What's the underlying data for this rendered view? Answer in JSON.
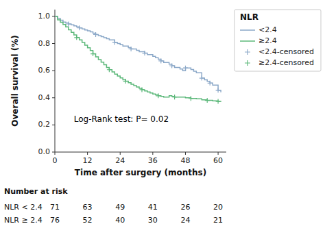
{
  "chart_data": {
    "type": "line",
    "xlabel": "Time after surgery (months)",
    "ylabel": "Overall survival (%)",
    "xlim": [
      0,
      63
    ],
    "ylim": [
      0.0,
      1.05
    ],
    "xticks": [
      0,
      12,
      24,
      36,
      48,
      60
    ],
    "yticks": [
      {
        "value": 0.0,
        "label": "0.0"
      },
      0.2,
      0.4,
      0.6,
      0.8,
      {
        "value": 1.0,
        "label": "1.0"
      }
    ],
    "grid": false,
    "legend": "right",
    "legend_title": "NLR",
    "annotation": {
      "text": "Log-Rank test: P= 0.02",
      "x": 7,
      "y": 0.22
    },
    "series": [
      {
        "name": "<2.4",
        "type": "step",
        "color": "#8ba8c8",
        "x": [
          0,
          1,
          2,
          3,
          4,
          5,
          6,
          7,
          8,
          9,
          10,
          11,
          12,
          13,
          14,
          15,
          16,
          17,
          18,
          19,
          20,
          22,
          23,
          24,
          25,
          27,
          28,
          30,
          31,
          33,
          34,
          36,
          37,
          38,
          39,
          40,
          42,
          43,
          44,
          46,
          47,
          48,
          50,
          51,
          52,
          54,
          55,
          56,
          57,
          58,
          60,
          61
        ],
        "values": [
          1.0,
          0.986,
          0.972,
          0.958,
          0.952,
          0.944,
          0.938,
          0.93,
          0.922,
          0.915,
          0.908,
          0.9,
          0.893,
          0.886,
          0.876,
          0.866,
          0.858,
          0.85,
          0.843,
          0.835,
          0.826,
          0.808,
          0.8,
          0.791,
          0.781,
          0.77,
          0.76,
          0.75,
          0.74,
          0.729,
          0.718,
          0.706,
          0.696,
          0.684,
          0.672,
          0.66,
          0.648,
          0.636,
          0.624,
          0.612,
          0.6,
          0.62,
          0.608,
          0.596,
          0.584,
          0.545,
          0.533,
          0.521,
          0.508,
          0.494,
          0.455,
          0.44
        ]
      },
      {
        "name": "≥2.4",
        "type": "step",
        "color": "#5cb87a",
        "x": [
          0,
          1,
          2,
          3,
          4,
          5,
          6,
          7,
          8,
          9,
          10,
          11,
          12,
          13,
          14,
          15,
          16,
          17,
          18,
          19,
          20,
          21,
          22,
          23,
          24,
          25,
          26,
          27,
          28,
          29,
          30,
          31,
          32,
          33,
          34,
          35,
          36,
          37,
          38,
          39,
          40,
          42,
          43,
          44,
          46,
          48,
          50,
          52,
          54,
          56,
          58,
          60,
          61
        ],
        "values": [
          1.0,
          0.974,
          0.956,
          0.94,
          0.922,
          0.901,
          0.882,
          0.863,
          0.844,
          0.826,
          0.808,
          0.788,
          0.768,
          0.748,
          0.724,
          0.702,
          0.682,
          0.662,
          0.643,
          0.624,
          0.607,
          0.59,
          0.574,
          0.56,
          0.546,
          0.533,
          0.522,
          0.511,
          0.5,
          0.49,
          0.48,
          0.47,
          0.46,
          0.451,
          0.443,
          0.435,
          0.428,
          0.422,
          0.415,
          0.41,
          0.405,
          0.415,
          0.41,
          0.405,
          0.405,
          0.4,
          0.395,
          0.393,
          0.385,
          0.381,
          0.377,
          0.373,
          0.37
        ]
      },
      {
        "name": "<2.4-censored",
        "type": "scatter",
        "marker": "plus",
        "color": "#8ba8c8",
        "x": [
          5,
          9,
          15,
          22,
          28,
          33,
          39,
          43,
          48,
          54,
          57,
          60
        ],
        "values": [
          0.944,
          0.915,
          0.866,
          0.808,
          0.76,
          0.729,
          0.672,
          0.636,
          0.62,
          0.545,
          0.508,
          0.455
        ]
      },
      {
        "name": "≥2.4-censored",
        "type": "scatter",
        "marker": "plus",
        "color": "#5cb87a",
        "x": [
          8,
          14,
          20,
          26,
          32,
          38,
          44,
          50,
          56,
          60
        ],
        "values": [
          0.844,
          0.724,
          0.607,
          0.522,
          0.46,
          0.415,
          0.405,
          0.395,
          0.381,
          0.373
        ]
      }
    ],
    "risk_table": {
      "title": "Number at risk",
      "x": [
        0,
        12,
        24,
        36,
        48,
        60
      ],
      "rows": [
        {
          "name": "NLR < 2.4",
          "values": [
            71,
            63,
            49,
            41,
            26,
            20
          ]
        },
        {
          "name": "NLR ≥ 2.4",
          "values": [
            76,
            52,
            40,
            30,
            24,
            21
          ]
        }
      ]
    }
  }
}
